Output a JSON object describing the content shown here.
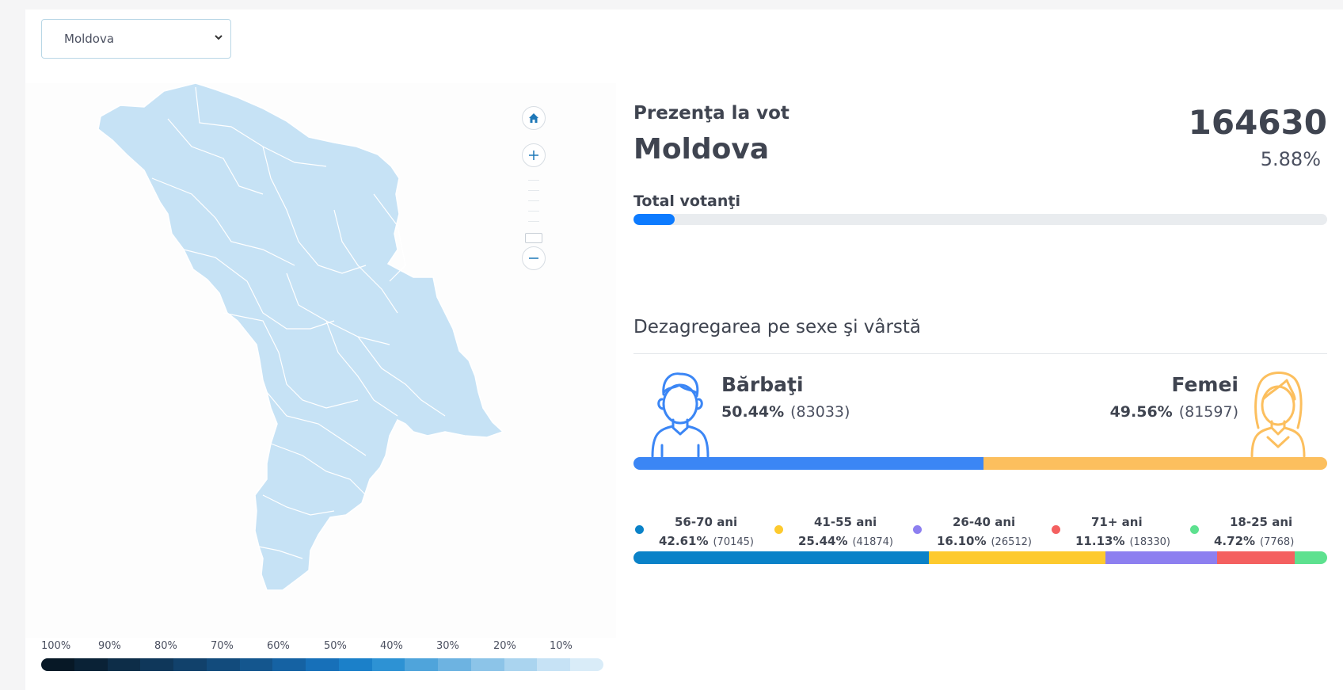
{
  "region_select": {
    "selected": "Moldova"
  },
  "map": {
    "controls": [
      "home",
      "zoom-in",
      "zoom-out"
    ],
    "fill_color": "#c6e2f5",
    "legend": {
      "labels": [
        "100%",
        "90%",
        "80%",
        "70%",
        "60%",
        "50%",
        "40%",
        "30%",
        "20%",
        "10%"
      ],
      "colors": [
        "#071826",
        "#0a2236",
        "#0d2d48",
        "#0f375a",
        "#11416b",
        "#124b7c",
        "#14568e",
        "#1562a3",
        "#1770b9",
        "#1b80c9",
        "#2d92d4",
        "#4fa4db",
        "#6db3e1",
        "#8cc4e8",
        "#aad4ef",
        "#c6e2f5",
        "#d9ecf8"
      ]
    }
  },
  "turnout": {
    "label": "Prezenţa la vot",
    "region": "Moldova",
    "count": "164630",
    "percent": "5.88%",
    "percent_value": 5.88,
    "total_label": "Total votanţi",
    "bar_color": "#0d7bff"
  },
  "breakdown": {
    "title": "Dezagregarea pe sexe şi vârstă",
    "male": {
      "label": "Bărbaţi",
      "percent": "50.44%",
      "count": "(83033)",
      "value": 50.44,
      "color": "#3b86f5"
    },
    "female": {
      "label": "Femei",
      "percent": "49.56%",
      "count": "(81597)",
      "value": 49.56,
      "color": "#fcbf5e"
    },
    "ages": [
      {
        "label": "56-70 ani",
        "percent": "42.61%",
        "count": "(70145)",
        "value": 42.61,
        "color": "#0a82c8"
      },
      {
        "label": "41-55 ani",
        "percent": "25.44%",
        "count": "(41874)",
        "value": 25.44,
        "color": "#fdca2e"
      },
      {
        "label": "26-40 ani",
        "percent": "16.10%",
        "count": "(26512)",
        "value": 16.1,
        "color": "#8d7ff0"
      },
      {
        "label": "71+ ani",
        "percent": "11.13%",
        "count": "(18330)",
        "value": 11.13,
        "color": "#f46060"
      },
      {
        "label": "18-25 ani",
        "percent": "4.72%",
        "count": "(7768)",
        "value": 4.72,
        "color": "#5de18f"
      }
    ]
  }
}
